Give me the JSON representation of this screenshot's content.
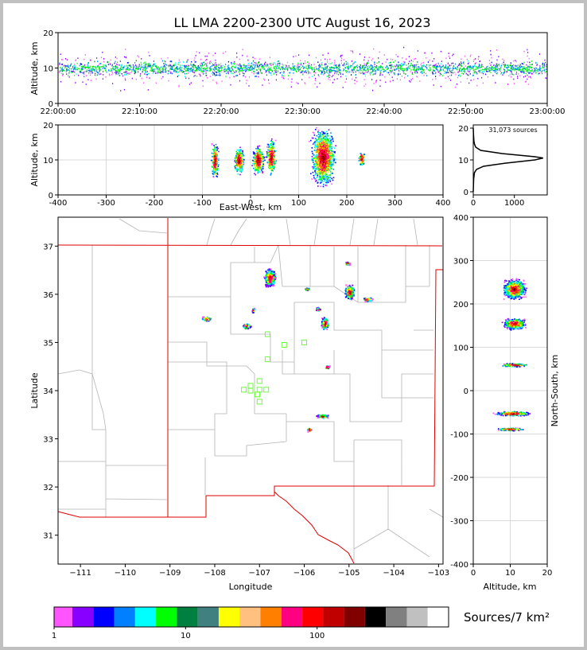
{
  "title": "LL LMA 2200-2300 UTC August 16, 2023",
  "colors": {
    "background": "#c0c0c0",
    "state_border": "#e00000",
    "county_border": "#b4b4b4",
    "station_marker": "#66ff33"
  },
  "chart_data": [
    {
      "id": "time_altitude",
      "type": "scatter",
      "xlabel": "",
      "ylabel": "Altitude, km",
      "x_ticks": [
        "22:00:00",
        "22:10:00",
        "22:20:00",
        "22:30:00",
        "22:40:00",
        "22:50:00",
        "23:00:00"
      ],
      "y_ticks": [
        0,
        10,
        20
      ],
      "xlim": [
        "22:00:00",
        "23:00:00"
      ],
      "ylim": [
        0,
        20
      ],
      "core_altitude_km": 10,
      "grid": false
    },
    {
      "id": "ew_altitude",
      "type": "heatmap",
      "xlabel": "East-West, km",
      "ylabel": "Altitude, km",
      "x_ticks": [
        -400,
        -300,
        -200,
        -100,
        0,
        100,
        200,
        300,
        400
      ],
      "y_ticks": [
        0,
        10,
        20
      ],
      "xlim": [
        -400,
        400
      ],
      "ylim": [
        0,
        20
      ],
      "grid": true,
      "clusters": [
        {
          "ew_km": -75,
          "alt_km": 10,
          "width_km": 15,
          "height_km": 10
        },
        {
          "ew_km": -25,
          "alt_km": 10,
          "width_km": 20,
          "height_km": 8
        },
        {
          "ew_km": 15,
          "alt_km": 10,
          "width_km": 25,
          "height_km": 8
        },
        {
          "ew_km": 42,
          "alt_km": 11,
          "width_km": 20,
          "height_km": 10
        },
        {
          "ew_km": 150,
          "alt_km": 11,
          "width_km": 50,
          "height_km": 16
        },
        {
          "ew_km": 230,
          "alt_km": 10.5,
          "width_km": 15,
          "height_km": 4
        }
      ]
    },
    {
      "id": "altitude_histogram",
      "type": "line",
      "annotation": "31,073 sources",
      "x_ticks": [
        0,
        1000
      ],
      "y_ticks": [
        0,
        10,
        20
      ],
      "xlim": [
        0,
        1800
      ],
      "ylim": [
        -1,
        21
      ],
      "grid": false,
      "profile": [
        {
          "alt_km": 0,
          "sources": 0
        },
        {
          "alt_km": 4,
          "sources": 10
        },
        {
          "alt_km": 6,
          "sources": 30
        },
        {
          "alt_km": 7,
          "sources": 80
        },
        {
          "alt_km": 8,
          "sources": 250
        },
        {
          "alt_km": 9,
          "sources": 800
        },
        {
          "alt_km": 10,
          "sources": 1500
        },
        {
          "alt_km": 10.6,
          "sources": 1700
        },
        {
          "alt_km": 11,
          "sources": 1500
        },
        {
          "alt_km": 12,
          "sources": 700
        },
        {
          "alt_km": 13,
          "sources": 180
        },
        {
          "alt_km": 14,
          "sources": 60
        },
        {
          "alt_km": 15,
          "sources": 30
        },
        {
          "alt_km": 16,
          "sources": 15
        },
        {
          "alt_km": 18,
          "sources": 5
        },
        {
          "alt_km": 20,
          "sources": 0
        }
      ]
    },
    {
      "id": "plan_view",
      "type": "heatmap",
      "xlabel": "Longitude",
      "ylabel": "Latitude",
      "x_ticks": [
        -111,
        -110,
        -109,
        -108,
        -107,
        -106,
        -105,
        -104,
        -103
      ],
      "y_ticks": [
        31,
        32,
        33,
        34,
        35,
        36,
        37
      ],
      "xlim": [
        -111.5,
        -102.9
      ],
      "ylim": [
        30.4,
        37.6
      ],
      "grid": false,
      "clusters": [
        {
          "lon": -108.2,
          "lat": 35.5,
          "dlon": 0.2,
          "dlat": 0.08
        },
        {
          "lon": -107.3,
          "lat": 35.35,
          "dlon": 0.2,
          "dlat": 0.1
        },
        {
          "lon": -107.15,
          "lat": 35.68,
          "dlon": 0.05,
          "dlat": 0.1
        },
        {
          "lon": -106.78,
          "lat": 36.35,
          "dlon": 0.25,
          "dlat": 0.35
        },
        {
          "lon": -105.95,
          "lat": 36.12,
          "dlon": 0.1,
          "dlat": 0.05
        },
        {
          "lon": -105.7,
          "lat": 35.7,
          "dlon": 0.1,
          "dlat": 0.08
        },
        {
          "lon": -105.55,
          "lat": 35.4,
          "dlon": 0.15,
          "dlat": 0.25
        },
        {
          "lon": -105.0,
          "lat": 36.05,
          "dlon": 0.2,
          "dlat": 0.3
        },
        {
          "lon": -104.6,
          "lat": 35.9,
          "dlon": 0.2,
          "dlat": 0.08
        },
        {
          "lon": -105.05,
          "lat": 36.65,
          "dlon": 0.12,
          "dlat": 0.06
        },
        {
          "lon": -105.5,
          "lat": 34.5,
          "dlon": 0.1,
          "dlat": 0.07
        },
        {
          "lon": -105.6,
          "lat": 33.48,
          "dlon": 0.25,
          "dlat": 0.08
        },
        {
          "lon": -105.9,
          "lat": 33.2,
          "dlon": 0.08,
          "dlat": 0.08
        }
      ],
      "stations": [
        {
          "lon": -106.82,
          "lat": 35.17
        },
        {
          "lon": -106.45,
          "lat": 34.95
        },
        {
          "lon": -106.0,
          "lat": 35.0
        },
        {
          "lon": -106.82,
          "lat": 34.65
        },
        {
          "lon": -107.0,
          "lat": 34.2
        },
        {
          "lon": -107.2,
          "lat": 34.1
        },
        {
          "lon": -107.35,
          "lat": 34.02
        },
        {
          "lon": -107.2,
          "lat": 34.0
        },
        {
          "lon": -107.0,
          "lat": 34.02
        },
        {
          "lon": -106.85,
          "lat": 34.02
        },
        {
          "lon": -107.05,
          "lat": 33.92
        },
        {
          "lon": -107.0,
          "lat": 33.77
        }
      ]
    },
    {
      "id": "ns_altitude",
      "type": "heatmap",
      "xlabel": "Altitude, km",
      "ylabel": "North-South, km",
      "x_ticks": [
        0,
        10,
        20
      ],
      "y_ticks": [
        -400,
        -300,
        -200,
        -100,
        0,
        100,
        200,
        300,
        400
      ],
      "xlim": [
        0,
        20
      ],
      "ylim": [
        -400,
        400
      ],
      "grid": true,
      "clusters": [
        {
          "alt_km": 11,
          "ns_km": 155,
          "dalt": 6,
          "dns": 25
        },
        {
          "alt_km": 11,
          "ns_km": 235,
          "dalt": 6,
          "dns": 45
        },
        {
          "alt_km": 11,
          "ns_km": 60,
          "dalt": 7,
          "dns": 8
        },
        {
          "alt_km": 10.5,
          "ns_km": -52,
          "dalt": 9,
          "dns": 10
        },
        {
          "alt_km": 10,
          "ns_km": -88,
          "dalt": 7,
          "dns": 6
        }
      ]
    }
  ],
  "colorbar": {
    "label": "Sources/7 km²",
    "tick_labels": [
      "1",
      "10",
      "100"
    ],
    "tick_values": [
      1,
      10,
      100
    ],
    "range": [
      1,
      1000
    ],
    "colors": [
      "#ff55ff",
      "#8800ff",
      "#0000ff",
      "#0080ff",
      "#00ffff",
      "#00ff00",
      "#008040",
      "#408080",
      "#ffff00",
      "#ffc080",
      "#ff8000",
      "#ff0080",
      "#ff0000",
      "#c00000",
      "#800000",
      "#000000",
      "#808080",
      "#c0c0c0",
      "#ffffff"
    ]
  }
}
